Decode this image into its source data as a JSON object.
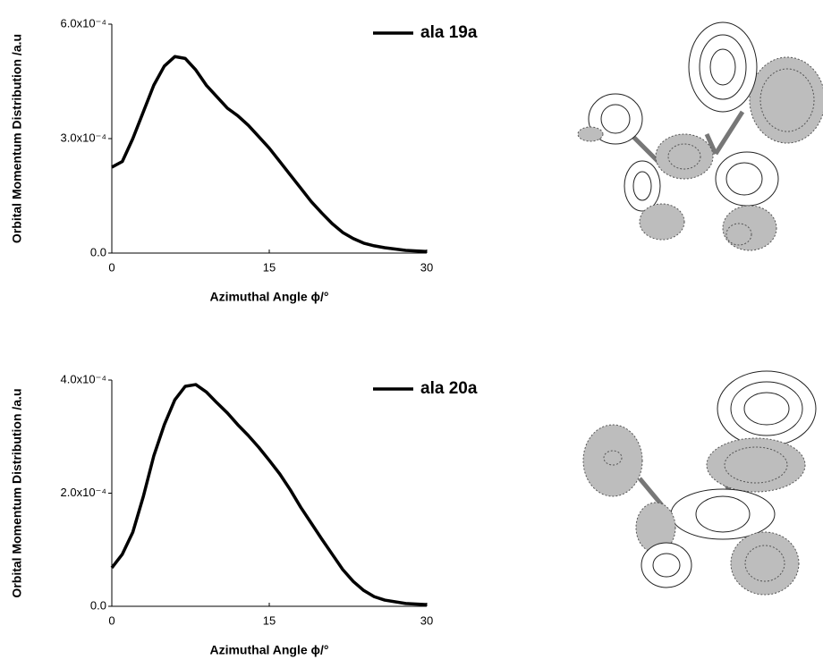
{
  "chart_data": [
    {
      "type": "line",
      "ylabel": "Orbital Momentum Distribution /a.u",
      "xlabel": "Azimuthal Angle ϕ/°",
      "xlim": [
        0,
        30
      ],
      "xticks": [
        0,
        15,
        30
      ],
      "ylim": [
        0,
        0.0006
      ],
      "yticks": [
        {
          "value": 0,
          "label": "0.0"
        },
        {
          "value": 0.0003,
          "label": "3.0x10⁻⁴"
        },
        {
          "value": 0.0006,
          "label": "6.0x10⁻⁴"
        }
      ],
      "legend": "upper right",
      "x": [
        0,
        1,
        2,
        3,
        4,
        5,
        6,
        7,
        8,
        9,
        10,
        11,
        12,
        13,
        14,
        15,
        16,
        17,
        18,
        19,
        20,
        21,
        22,
        23,
        24,
        25,
        26,
        28,
        30
      ],
      "series": [
        {
          "name": "ala 19a",
          "color": "#000000",
          "values": [
            0.000225,
            0.00024,
            0.0003,
            0.00037,
            0.00044,
            0.00049,
            0.000515,
            0.00051,
            0.00048,
            0.00044,
            0.00041,
            0.00038,
            0.00036,
            0.000335,
            0.000305,
            0.000275,
            0.00024,
            0.000205,
            0.00017,
            0.000135,
            0.000105,
            7.7e-05,
            5.4e-05,
            3.8e-05,
            2.6e-05,
            1.9e-05,
            1.4e-05,
            7e-06,
            4e-06
          ]
        }
      ]
    },
    {
      "type": "line",
      "ylabel": "Orbital Momentum Distribution /a.u",
      "xlabel": "Azimuthal Angle ϕ/°",
      "xlim": [
        0,
        30
      ],
      "xticks": [
        0,
        15,
        30
      ],
      "ylim": [
        0,
        0.0004
      ],
      "yticks": [
        {
          "value": 0,
          "label": "0.0"
        },
        {
          "value": 0.0002,
          "label": "2.0x10⁻⁴"
        },
        {
          "value": 0.0004,
          "label": "4.0x10⁻⁴"
        }
      ],
      "legend": "upper right",
      "x": [
        0,
        1,
        2,
        3,
        4,
        5,
        6,
        7,
        8,
        9,
        10,
        11,
        12,
        13,
        14,
        15,
        16,
        17,
        18,
        19,
        20,
        21,
        22,
        23,
        24,
        25,
        26,
        28,
        30
      ],
      "series": [
        {
          "name": "ala 20a",
          "color": "#000000",
          "values": [
            6.8e-05,
            9.2e-05,
            0.000131,
            0.000194,
            0.000266,
            0.000321,
            0.000365,
            0.000389,
            0.000392,
            0.000379,
            0.00036,
            0.000342,
            0.000321,
            0.000302,
            0.000281,
            0.000258,
            0.000234,
            0.000206,
            0.000175,
            0.000147,
            0.000119,
            9.2e-05,
            6.5e-05,
            4.4e-05,
            2.8e-05,
            1.7e-05,
            1.1e-05,
            5e-06,
            3e-06
          ]
        }
      ]
    }
  ]
}
